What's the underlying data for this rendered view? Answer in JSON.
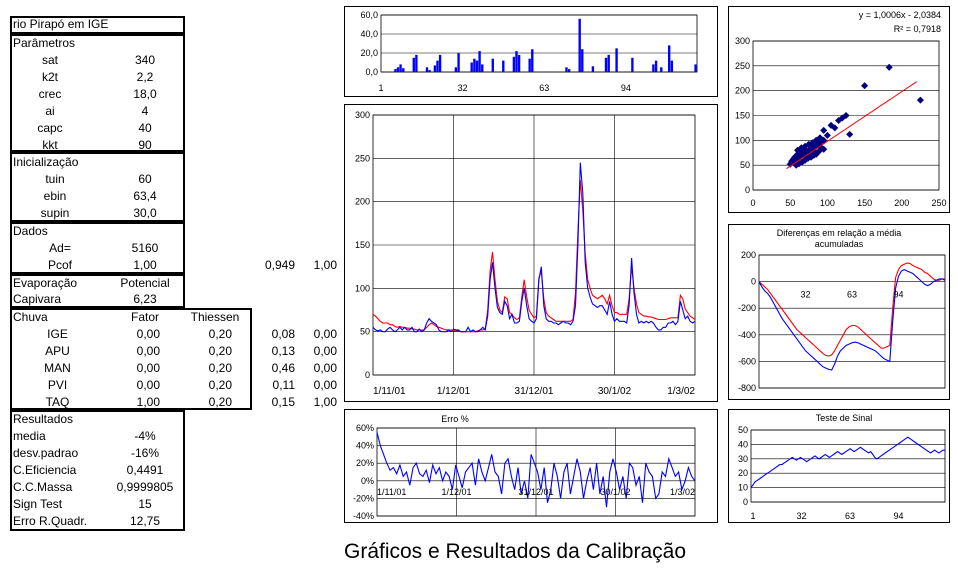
{
  "sheet": {
    "title": "rio Pirapó em IGE",
    "params_header": "Parâmetros",
    "params": [
      {
        "label": "sat",
        "value": "340"
      },
      {
        "label": "k2t",
        "value": "2,2"
      },
      {
        "label": "crec",
        "value": "18,0"
      },
      {
        "label": "ai",
        "value": "4"
      },
      {
        "label": "capc",
        "value": "40"
      },
      {
        "label": "kkt",
        "value": "90"
      }
    ],
    "init_header": "Inicialização",
    "init": [
      {
        "label": "tuin",
        "value": "60"
      },
      {
        "label": "ebin",
        "value": "63,4"
      },
      {
        "label": "supin",
        "value": "30,0"
      }
    ],
    "dados_header": "Dados",
    "dados": [
      {
        "label": "Ad=",
        "value": "5160"
      },
      {
        "label": "Pcof",
        "value": "1,00",
        "extra1": "0,949",
        "extra2": "1,00"
      }
    ],
    "evap": {
      "label": "Evaporação",
      "value_header": "Potencial",
      "row_label": "Capivara",
      "row_value": "6,23"
    },
    "chuva": {
      "header": "Chuva",
      "col1": "Fator",
      "col2": "Thiessen",
      "rows": [
        {
          "label": "IGE",
          "fator": "0,00",
          "thiessen": "0,20",
          "e1": "0,08",
          "e2": "0,00"
        },
        {
          "label": "APU",
          "fator": "0,00",
          "thiessen": "0,20",
          "e1": "0,13",
          "e2": "0,00"
        },
        {
          "label": "MAN",
          "fator": "0,00",
          "thiessen": "0,20",
          "e1": "0,46",
          "e2": "0,00"
        },
        {
          "label": "PVI",
          "fator": "0,00",
          "thiessen": "0,20",
          "e1": "0,11",
          "e2": "0,00"
        },
        {
          "label": "TAQ",
          "fator": "1,00",
          "thiessen": "0,20",
          "e1": "0,15",
          "e2": "1,00"
        }
      ]
    },
    "results_header": "Resultados",
    "results": [
      {
        "label": "media",
        "value": "-4%"
      },
      {
        "label": "desv.padrao",
        "value": "-16%"
      },
      {
        "label": "C.Eficiencia",
        "value": "0,4491"
      },
      {
        "label": "C.C.Massa",
        "value": "0,9999805"
      },
      {
        "label": "Sign Test",
        "value": "15"
      },
      {
        "label": "Erro R.Quadr.",
        "value": "12,75"
      }
    ]
  },
  "footer": "Gráficos e Resultados da Calibração",
  "colors": {
    "observed": "#0000ff",
    "calculated": "#ff0000",
    "bars": "#0000ff",
    "scatter": "#000080"
  },
  "chart_data": [
    {
      "type": "bar",
      "name": "rainfall",
      "ylim": [
        0,
        60
      ],
      "yticks": [
        "60,0",
        "40,0",
        "20,0",
        "0,0"
      ],
      "xticks": [
        "1",
        "32",
        "63",
        "94"
      ],
      "values": [
        0,
        0,
        0,
        0,
        0,
        3,
        5,
        8,
        4,
        0,
        0,
        0,
        15,
        18,
        0,
        0,
        0,
        5,
        2,
        0,
        7,
        12,
        18,
        0,
        0,
        0,
        0,
        0,
        5,
        20,
        0,
        0,
        0,
        0,
        10,
        14,
        12,
        22,
        8,
        0,
        0,
        0,
        14,
        0,
        0,
        0,
        12,
        0,
        0,
        0,
        16,
        22,
        18,
        0,
        0,
        0,
        14,
        24,
        0,
        0,
        0,
        0,
        0,
        0,
        0,
        0,
        0,
        0,
        0,
        0,
        5,
        3,
        0,
        0,
        0,
        56,
        24,
        0,
        0,
        0,
        6,
        0,
        0,
        0,
        0,
        15,
        18,
        0,
        0,
        25,
        0,
        0,
        0,
        0,
        0,
        15,
        0,
        0,
        0,
        0,
        0,
        0,
        0,
        8,
        12,
        0,
        5,
        0,
        0,
        28,
        12,
        0,
        0,
        0,
        0,
        0,
        0,
        0,
        0,
        8
      ]
    },
    {
      "type": "line",
      "name": "discharge",
      "ylim": [
        0,
        300
      ],
      "yticks": [
        "300",
        "250",
        "200",
        "150",
        "100",
        "50",
        "0"
      ],
      "xticks": [
        "1/11/01",
        "1/12/01",
        "31/12/01",
        "30/1/02",
        "1/3/02"
      ],
      "series": [
        {
          "values": [
            55,
            52,
            51,
            52,
            50,
            50,
            53,
            55,
            52,
            50,
            52,
            55,
            52,
            55,
            52,
            52,
            55,
            50,
            50,
            53,
            50,
            52,
            60,
            65,
            62,
            60,
            58,
            52,
            50,
            50,
            50,
            52,
            50,
            53,
            52,
            52,
            50,
            50,
            50,
            55,
            50,
            52,
            50,
            50,
            52,
            55,
            52,
            68,
            110,
            130,
            100,
            78,
            72,
            70,
            85,
            80,
            65,
            70,
            60,
            60,
            62,
            85,
            100,
            80,
            65,
            62,
            60,
            65,
            110,
            125,
            80,
            65,
            62,
            62,
            60,
            60,
            58,
            60,
            62,
            60,
            60,
            58,
            62,
            80,
            150,
            245,
            210,
            130,
            100,
            90,
            82,
            80,
            78,
            80,
            80,
            75,
            70,
            85,
            70,
            62,
            65,
            62,
            62,
            62,
            60,
            80,
            135,
            95,
            70,
            60,
            62,
            60,
            62,
            60,
            62,
            60,
            55,
            52,
            52,
            55,
            55,
            60,
            60,
            62,
            58,
            62,
            85,
            75,
            65,
            68,
            62,
            60,
            62
          ]
        },
        {
          "values": [
            70,
            68,
            65,
            62,
            60,
            60,
            60,
            58,
            58,
            56,
            55,
            56,
            55,
            55,
            54,
            54,
            53,
            53,
            52,
            52,
            52,
            52,
            55,
            58,
            60,
            58,
            56,
            55,
            54,
            53,
            52,
            52,
            52,
            51,
            51,
            51,
            50,
            50,
            50,
            50,
            50,
            50,
            50,
            51,
            52,
            52,
            53,
            75,
            120,
            142,
            110,
            85,
            75,
            72,
            90,
            88,
            72,
            70,
            66,
            64,
            66,
            90,
            110,
            90,
            75,
            70,
            66,
            68,
            112,
            120,
            88,
            72,
            68,
            66,
            64,
            62,
            62,
            62,
            62,
            62,
            62,
            62,
            64,
            95,
            165,
            225,
            190,
            140,
            110,
            100,
            92,
            90,
            88,
            90,
            92,
            88,
            82,
            92,
            80,
            72,
            72,
            70,
            70,
            70,
            70,
            88,
            125,
            100,
            82,
            72,
            70,
            68,
            68,
            67,
            67,
            66,
            65,
            64,
            64,
            64,
            64,
            65,
            66,
            66,
            66,
            66,
            92,
            88,
            76,
            72,
            68,
            66,
            64
          ]
        }
      ]
    },
    {
      "type": "scatter",
      "name": "observed-vs-calculated",
      "equation": "y = 1,0006x - 2,0384",
      "r2": "R² = 0,7918",
      "xlim": [
        0,
        250
      ],
      "ylim": [
        0,
        300
      ],
      "xticks": [
        "0",
        "50",
        "100",
        "150",
        "200",
        "250"
      ],
      "yticks": [
        "300",
        "250",
        "200",
        "150",
        "100",
        "50",
        "0"
      ],
      "trend": {
        "slope": 1.0006,
        "intercept": -2.0384
      },
      "points": [
        [
          50,
          52
        ],
        [
          52,
          55
        ],
        [
          55,
          55
        ],
        [
          58,
          58
        ],
        [
          60,
          62
        ],
        [
          62,
          65
        ],
        [
          65,
          68
        ],
        [
          68,
          70
        ],
        [
          70,
          72
        ],
        [
          72,
          75
        ],
        [
          75,
          80
        ],
        [
          78,
          82
        ],
        [
          80,
          85
        ],
        [
          85,
          88
        ],
        [
          88,
          90
        ],
        [
          90,
          95
        ],
        [
          95,
          100
        ],
        [
          55,
          60
        ],
        [
          58,
          62
        ],
        [
          60,
          66
        ],
        [
          62,
          70
        ],
        [
          65,
          75
        ],
        [
          68,
          78
        ],
        [
          70,
          82
        ],
        [
          72,
          70
        ],
        [
          75,
          68
        ],
        [
          78,
          72
        ],
        [
          80,
          75
        ],
        [
          82,
          78
        ],
        [
          85,
          72
        ],
        [
          90,
          80
        ],
        [
          92,
          85
        ],
        [
          95,
          82
        ],
        [
          100,
          110
        ],
        [
          105,
          130
        ],
        [
          110,
          125
        ],
        [
          115,
          140
        ],
        [
          120,
          145
        ],
        [
          125,
          150
        ],
        [
          60,
          80
        ],
        [
          65,
          85
        ],
        [
          70,
          88
        ],
        [
          75,
          92
        ],
        [
          80,
          95
        ],
        [
          85,
          100
        ],
        [
          90,
          105
        ],
        [
          95,
          120
        ],
        [
          130,
          112
        ],
        [
          150,
          210
        ],
        [
          183,
          247
        ],
        [
          225,
          181
        ],
        [
          58,
          50
        ],
        [
          62,
          53
        ],
        [
          66,
          56
        ],
        [
          70,
          60
        ],
        [
          74,
          64
        ],
        [
          78,
          66
        ],
        [
          82,
          70
        ],
        [
          86,
          74
        ],
        [
          52,
          58
        ],
        [
          54,
          62
        ],
        [
          56,
          66
        ],
        [
          60,
          72
        ],
        [
          64,
          78
        ]
      ]
    },
    {
      "type": "line",
      "name": "cumulative-differences",
      "title": "Diferenças em relação a média acumuladas",
      "ylim": [
        -800,
        200
      ],
      "yticks": [
        "200",
        "0",
        "-200",
        "-400",
        "-600",
        "-800"
      ],
      "xticks": [
        "32",
        "63",
        "94"
      ],
      "series": [
        {
          "values": [
            0,
            -40,
            -70,
            -90,
            -120,
            -160,
            -200,
            -240,
            -280,
            -310,
            -340,
            -370,
            -400,
            -430,
            -460,
            -490,
            -520,
            -540,
            -560,
            -580,
            -600,
            -620,
            -640,
            -650,
            -660,
            -665,
            -620,
            -560,
            -520,
            -500,
            -480,
            -470,
            -460,
            -455,
            -460,
            -470,
            -480,
            -490,
            -500,
            -510,
            -520,
            -540,
            -560,
            -580,
            -590,
            -600,
            -300,
            -50,
            40,
            80,
            90,
            80,
            70,
            60,
            40,
            20,
            0,
            -20,
            -30,
            -20,
            0,
            10,
            20,
            20,
            10
          ]
        },
        {
          "values": [
            0,
            -20,
            -40,
            -60,
            -90,
            -120,
            -150,
            -180,
            -210,
            -240,
            -270,
            -300,
            -330,
            -360,
            -380,
            -400,
            -420,
            -440,
            -460,
            -480,
            -500,
            -520,
            -540,
            -555,
            -560,
            -550,
            -520,
            -480,
            -440,
            -400,
            -360,
            -340,
            -330,
            -330,
            -340,
            -360,
            -380,
            -400,
            -420,
            -440,
            -460,
            -480,
            -500,
            -500,
            -490,
            -480,
            -200,
            30,
            90,
            120,
            130,
            140,
            135,
            120,
            110,
            100,
            90,
            70,
            60,
            40,
            20,
            10,
            10,
            20,
            20
          ]
        }
      ]
    },
    {
      "type": "line",
      "name": "error-percent",
      "title": "Erro %",
      "ylim": [
        -40,
        60
      ],
      "yticks": [
        "60%",
        "40%",
        "20%",
        "0%",
        "-20%",
        "-40%"
      ],
      "xticks": [
        "1/11/01",
        "1/12/01",
        "31/12/01",
        "30/1/02",
        "1/3/02"
      ],
      "values": [
        55,
        40,
        30,
        20,
        12,
        15,
        8,
        18,
        5,
        10,
        -5,
        15,
        20,
        8,
        5,
        12,
        -2,
        18,
        8,
        15,
        0,
        10,
        5,
        -10,
        18,
        5,
        -8,
        10,
        15,
        20,
        -5,
        25,
        10,
        0,
        15,
        30,
        10,
        5,
        -15,
        20,
        25,
        5,
        -10,
        15,
        -15,
        0,
        -20,
        30,
        20,
        10,
        -10,
        15,
        -25,
        -10,
        20,
        5,
        -20,
        10,
        20,
        -15,
        5,
        25,
        10,
        -20,
        0,
        15,
        -10,
        20,
        -15,
        5,
        -30,
        10,
        25,
        10,
        -10,
        5,
        -20,
        20,
        15,
        -5,
        5,
        -25,
        20,
        10,
        5,
        -20,
        -15,
        10,
        5,
        25,
        15,
        5,
        10,
        -10,
        0,
        15,
        5,
        0
      ]
    },
    {
      "type": "line",
      "name": "sign-test",
      "title": "Teste de Sinal",
      "ylim": [
        0,
        50
      ],
      "yticks": [
        "50",
        "40",
        "30",
        "20",
        "10",
        "0"
      ],
      "xticks": [
        "1",
        "32",
        "63",
        "94"
      ],
      "values": [
        10,
        12,
        14,
        15,
        16,
        17,
        18,
        19,
        20,
        21,
        22,
        23,
        24,
        25,
        26,
        26,
        27,
        28,
        29,
        30,
        31,
        30,
        29,
        30,
        31,
        30,
        29,
        28,
        29,
        30,
        31,
        32,
        31,
        30,
        31,
        32,
        33,
        32,
        31,
        32,
        33,
        34,
        35,
        34,
        33,
        34,
        35,
        36,
        37,
        36,
        35,
        36,
        37,
        38,
        37,
        36,
        35,
        34,
        35,
        33,
        31,
        30,
        31,
        32,
        33,
        34,
        35,
        36,
        37,
        38,
        39,
        40,
        41,
        42,
        43,
        44,
        45,
        44,
        43,
        42,
        41,
        40,
        39,
        38,
        37,
        36,
        35,
        34,
        35,
        36,
        35,
        34,
        35,
        36,
        36
      ]
    }
  ]
}
